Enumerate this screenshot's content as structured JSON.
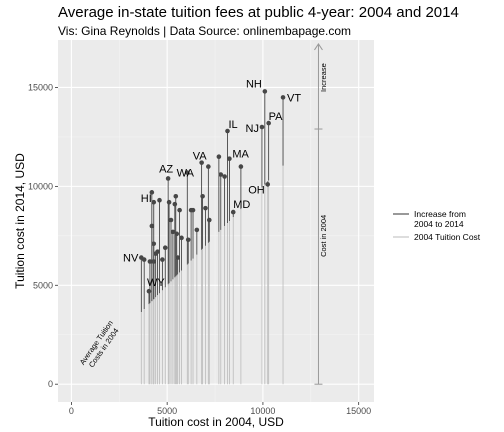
{
  "title": "Average in-state tuition fees at public 4-year: 2004 and 2014",
  "subtitle": "Vis: Gina Reynolds | Data Source: onlinembapage.com",
  "chart_data": {
    "type": "scatter",
    "xlabel": "Tuition cost in 2004, USD",
    "ylabel": "Tuition cost in 2014, USD",
    "xlim": [
      -700,
      15800
    ],
    "ylim": [
      -900,
      17400
    ],
    "x_ticks": [
      0,
      5000,
      10000,
      15000
    ],
    "y_ticks": [
      0,
      5000,
      10000,
      15000
    ],
    "x_tick_labels": [
      "0",
      "5000",
      "10000",
      "15000"
    ],
    "y_tick_labels": [
      "0",
      "5000",
      "10000",
      "15000"
    ],
    "grid": true,
    "points": [
      {
        "x": 3650,
        "y": 6400,
        "label": "NV"
      },
      {
        "x": 3800,
        "y": 6300,
        "label": ""
      },
      {
        "x": 4050,
        "y": 4700,
        "label": "WY"
      },
      {
        "x": 4100,
        "y": 6200,
        "label": ""
      },
      {
        "x": 4200,
        "y": 9700,
        "label": ""
      },
      {
        "x": 4300,
        "y": 9200,
        "label": "HI"
      },
      {
        "x": 4200,
        "y": 8000,
        "label": ""
      },
      {
        "x": 4300,
        "y": 7100,
        "label": ""
      },
      {
        "x": 4400,
        "y": 6600,
        "label": ""
      },
      {
        "x": 4500,
        "y": 6700,
        "label": ""
      },
      {
        "x": 4300,
        "y": 6200,
        "label": ""
      },
      {
        "x": 4600,
        "y": 9300,
        "label": ""
      },
      {
        "x": 4750,
        "y": 6300,
        "label": ""
      },
      {
        "x": 4900,
        "y": 6900,
        "label": ""
      },
      {
        "x": 5050,
        "y": 10400,
        "label": "AZ"
      },
      {
        "x": 5100,
        "y": 9200,
        "label": ""
      },
      {
        "x": 5200,
        "y": 8300,
        "label": ""
      },
      {
        "x": 5300,
        "y": 7700,
        "label": ""
      },
      {
        "x": 5400,
        "y": 9100,
        "label": ""
      },
      {
        "x": 5450,
        "y": 9500,
        "label": ""
      },
      {
        "x": 5500,
        "y": 7600,
        "label": ""
      },
      {
        "x": 5550,
        "y": 6400,
        "label": ""
      },
      {
        "x": 5650,
        "y": 8800,
        "label": ""
      },
      {
        "x": 5750,
        "y": 7400,
        "label": ""
      },
      {
        "x": 6050,
        "y": 10700,
        "label": "WA"
      },
      {
        "x": 6100,
        "y": 7300,
        "label": ""
      },
      {
        "x": 6250,
        "y": 8800,
        "label": ""
      },
      {
        "x": 6350,
        "y": 8800,
        "label": ""
      },
      {
        "x": 6550,
        "y": 7800,
        "label": ""
      },
      {
        "x": 6800,
        "y": 11200,
        "label": "VA"
      },
      {
        "x": 6850,
        "y": 9500,
        "label": ""
      },
      {
        "x": 7000,
        "y": 8900,
        "label": ""
      },
      {
        "x": 7150,
        "y": 11000,
        "label": ""
      },
      {
        "x": 7200,
        "y": 8300,
        "label": ""
      },
      {
        "x": 7700,
        "y": 11500,
        "label": ""
      },
      {
        "x": 7800,
        "y": 10600,
        "label": ""
      },
      {
        "x": 8000,
        "y": 10500,
        "label": ""
      },
      {
        "x": 8150,
        "y": 12800,
        "label": "IL"
      },
      {
        "x": 8250,
        "y": 11400,
        "label": "MA"
      },
      {
        "x": 8450,
        "y": 8700,
        "label": "MD"
      },
      {
        "x": 8850,
        "y": 11000,
        "label": ""
      },
      {
        "x": 9950,
        "y": 13000,
        "label": "NJ"
      },
      {
        "x": 10250,
        "y": 10100,
        "label": "OH"
      },
      {
        "x": 10100,
        "y": 14800,
        "label": "NH"
      },
      {
        "x": 10300,
        "y": 13200,
        "label": "PA"
      },
      {
        "x": 11050,
        "y": 14500,
        "label": "VT"
      }
    ],
    "annotations": [
      {
        "text": "Increase",
        "x": 13300,
        "y": 15500
      },
      {
        "text": "Cost in 2004",
        "x": 13300,
        "y": 7500
      },
      {
        "text": "Average Tuition\nCosts in 2004",
        "x": 1600,
        "y": 1900
      }
    ],
    "bracket": {
      "x": 12900,
      "base": 0,
      "mid": 12900,
      "top": 17200
    },
    "legend": {
      "position": "right",
      "items": [
        {
          "label": "Increase from\n2004 to 2014",
          "color": "#333333"
        },
        {
          "label": "2004 Tuition Cost",
          "color": "#bbbbbb"
        }
      ]
    },
    "colors": {
      "panel": "#ebebeb",
      "grid_major": "#ffffff",
      "grid_minor": "#f4f4f4",
      "increase": "#333333",
      "base": "#bbbbbb",
      "point": "#474747",
      "bracket": "#999999"
    }
  }
}
